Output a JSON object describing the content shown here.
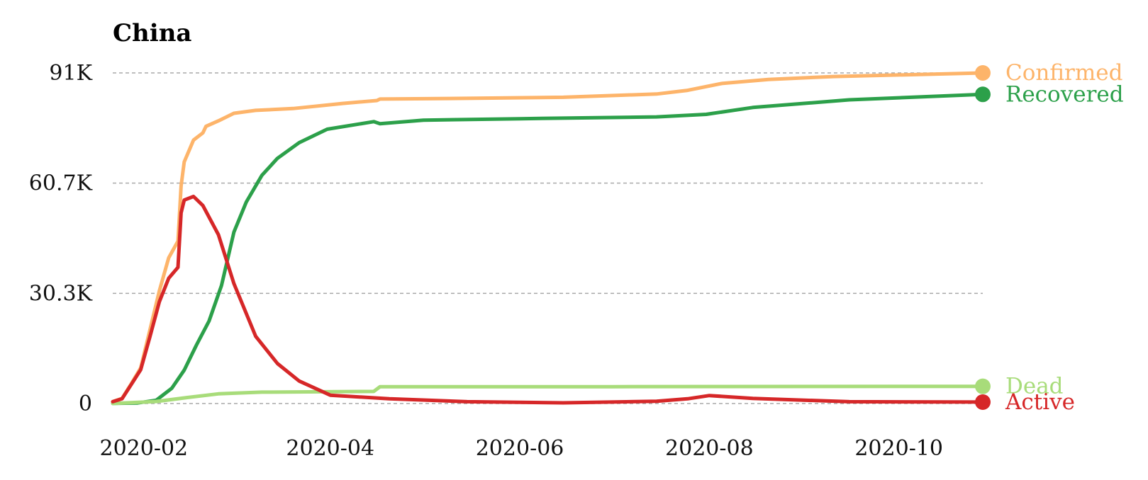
{
  "chart_data": {
    "type": "line",
    "title": "China",
    "xlabel": "",
    "ylabel": "",
    "grid": "horizontal",
    "legend": "inline-right",
    "x_range": [
      "2020-01-22",
      "2020-10-28"
    ],
    "ylim": [
      0,
      91000
    ],
    "y_ticks": [
      {
        "value": 0,
        "label": "0"
      },
      {
        "value": 30333,
        "label": "30.3K"
      },
      {
        "value": 60667,
        "label": "60.7K"
      },
      {
        "value": 91000,
        "label": "91K"
      }
    ],
    "x_ticks": [
      {
        "value": "2020-02-01",
        "label": "2020-02"
      },
      {
        "value": "2020-04-01",
        "label": "2020-04"
      },
      {
        "value": "2020-06-01",
        "label": "2020-06"
      },
      {
        "value": "2020-08-01",
        "label": "2020-08"
      },
      {
        "value": "2020-10-01",
        "label": "2020-10"
      }
    ],
    "series": [
      {
        "name": "Confirmed",
        "color": "#fdb46a",
        "points": [
          [
            "2020-01-22",
            550
          ],
          [
            "2020-01-25",
            1400
          ],
          [
            "2020-01-28",
            5500
          ],
          [
            "2020-01-31",
            9800
          ],
          [
            "2020-02-03",
            20400
          ],
          [
            "2020-02-06",
            31000
          ],
          [
            "2020-02-09",
            40100
          ],
          [
            "2020-02-12",
            44700
          ],
          [
            "2020-02-13",
            59900
          ],
          [
            "2020-02-14",
            66500
          ],
          [
            "2020-02-17",
            72500
          ],
          [
            "2020-02-20",
            74500
          ],
          [
            "2020-02-21",
            76300
          ],
          [
            "2020-02-25",
            77800
          ],
          [
            "2020-03-01",
            79900
          ],
          [
            "2020-03-08",
            80700
          ],
          [
            "2020-03-20",
            81200
          ],
          [
            "2020-04-05",
            82600
          ],
          [
            "2020-04-16",
            83400
          ],
          [
            "2020-04-17",
            83800
          ],
          [
            "2020-05-15",
            84000
          ],
          [
            "2020-06-15",
            84300
          ],
          [
            "2020-07-15",
            85200
          ],
          [
            "2020-07-25",
            86200
          ],
          [
            "2020-08-05",
            88100
          ],
          [
            "2020-08-20",
            89200
          ],
          [
            "2020-09-10",
            90000
          ],
          [
            "2020-10-28",
            91000
          ]
        ]
      },
      {
        "name": "Recovered",
        "color": "#2ca04a",
        "points": [
          [
            "2020-01-22",
            30
          ],
          [
            "2020-01-30",
            150
          ],
          [
            "2020-02-05",
            900
          ],
          [
            "2020-02-10",
            4200
          ],
          [
            "2020-02-14",
            9200
          ],
          [
            "2020-02-18",
            16200
          ],
          [
            "2020-02-22",
            22700
          ],
          [
            "2020-02-26",
            32500
          ],
          [
            "2020-03-01",
            47200
          ],
          [
            "2020-03-05",
            55500
          ],
          [
            "2020-03-10",
            62800
          ],
          [
            "2020-03-15",
            67500
          ],
          [
            "2020-03-22",
            71800
          ],
          [
            "2020-03-31",
            75500
          ],
          [
            "2020-04-15",
            77600
          ],
          [
            "2020-04-17",
            77000
          ],
          [
            "2020-05-01",
            78000
          ],
          [
            "2020-06-01",
            78400
          ],
          [
            "2020-07-15",
            78900
          ],
          [
            "2020-07-31",
            79600
          ],
          [
            "2020-08-15",
            81500
          ],
          [
            "2020-09-15",
            83600
          ],
          [
            "2020-10-28",
            85100
          ]
        ]
      },
      {
        "name": "Dead",
        "color": "#a8dc7a",
        "points": [
          [
            "2020-01-22",
            17
          ],
          [
            "2020-02-05",
            560
          ],
          [
            "2020-02-15",
            1660
          ],
          [
            "2020-02-25",
            2660
          ],
          [
            "2020-03-10",
            3140
          ],
          [
            "2020-04-15",
            3340
          ],
          [
            "2020-04-17",
            4630
          ],
          [
            "2020-07-01",
            4640
          ],
          [
            "2020-10-28",
            4740
          ]
        ]
      },
      {
        "name": "Active",
        "color": "#d62728",
        "points": [
          [
            "2020-01-22",
            500
          ],
          [
            "2020-01-25",
            1300
          ],
          [
            "2020-01-28",
            5300
          ],
          [
            "2020-01-31",
            9300
          ],
          [
            "2020-02-03",
            18500
          ],
          [
            "2020-02-06",
            28000
          ],
          [
            "2020-02-09",
            34500
          ],
          [
            "2020-02-12",
            37500
          ],
          [
            "2020-02-13",
            52500
          ],
          [
            "2020-02-14",
            56000
          ],
          [
            "2020-02-17",
            57000
          ],
          [
            "2020-02-20",
            54500
          ],
          [
            "2020-02-25",
            46500
          ],
          [
            "2020-03-01",
            33000
          ],
          [
            "2020-03-08",
            18500
          ],
          [
            "2020-03-15",
            11000
          ],
          [
            "2020-03-22",
            6200
          ],
          [
            "2020-04-01",
            2300
          ],
          [
            "2020-04-20",
            1300
          ],
          [
            "2020-05-15",
            500
          ],
          [
            "2020-06-15",
            200
          ],
          [
            "2020-07-15",
            650
          ],
          [
            "2020-07-25",
            1300
          ],
          [
            "2020-08-01",
            2200
          ],
          [
            "2020-08-15",
            1400
          ],
          [
            "2020-09-15",
            500
          ],
          [
            "2020-10-28",
            400
          ]
        ]
      }
    ]
  }
}
